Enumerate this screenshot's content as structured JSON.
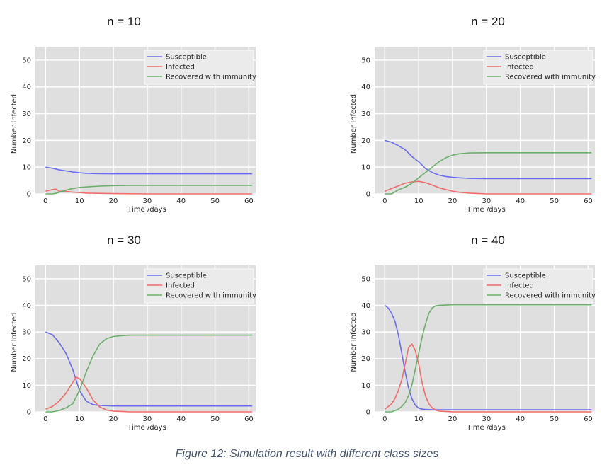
{
  "figure_caption": "Figure 12: Simulation result with different class sizes",
  "chart_data": [
    {
      "type": "line",
      "title": "n = 10",
      "xlabel": "Time /days",
      "ylabel": "Number Infected",
      "xlim": [
        -3,
        62
      ],
      "ylim": [
        0,
        55
      ],
      "xticks": [
        0,
        10,
        20,
        30,
        40,
        50,
        60
      ],
      "yticks": [
        0,
        10,
        20,
        30,
        40,
        50
      ],
      "grid": true,
      "legend_position": "top-right",
      "series": [
        {
          "name": "Susceptible",
          "color": "#6b6bf0",
          "x": [
            0,
            2,
            4,
            6,
            8,
            10,
            12,
            15,
            20,
            25,
            30,
            40,
            50,
            61
          ],
          "y": [
            10,
            9.6,
            9.0,
            8.6,
            8.2,
            7.9,
            7.7,
            7.6,
            7.5,
            7.5,
            7.5,
            7.5,
            7.5,
            7.5
          ]
        },
        {
          "name": "Infected",
          "color": "#f06b6b",
          "x": [
            0,
            1,
            2,
            3,
            4,
            5,
            6,
            8,
            10,
            12,
            15,
            20,
            30,
            61
          ],
          "y": [
            1,
            1.3,
            1.6,
            1.8,
            1.0,
            1.0,
            0.9,
            0.7,
            0.5,
            0.3,
            0.2,
            0.1,
            0,
            0
          ]
        },
        {
          "name": "Recovered with immunity",
          "color": "#6baf6b",
          "x": [
            0,
            2,
            3,
            4,
            6,
            8,
            10,
            13,
            16,
            20,
            25,
            30,
            40,
            61
          ],
          "y": [
            0,
            0,
            0.2,
            0.6,
            1.4,
            2.0,
            2.4,
            2.7,
            2.9,
            3.1,
            3.2,
            3.2,
            3.2,
            3.2
          ]
        }
      ]
    },
    {
      "type": "line",
      "title": "n  = 20",
      "xlabel": "Time /days",
      "ylabel": "Number Infected",
      "xlim": [
        -3,
        62
      ],
      "ylim": [
        0,
        55
      ],
      "xticks": [
        0,
        10,
        20,
        30,
        40,
        50,
        60
      ],
      "yticks": [
        0,
        10,
        20,
        30,
        40,
        50
      ],
      "grid": true,
      "legend_position": "top-right",
      "series": [
        {
          "name": "Susceptible",
          "color": "#6b6bf0",
          "x": [
            0,
            2,
            4,
            6,
            8,
            10,
            12,
            14,
            16,
            18,
            20,
            22,
            25,
            30,
            40,
            50,
            61
          ],
          "y": [
            20,
            19.3,
            18,
            16.5,
            14,
            12,
            9.5,
            8,
            7,
            6.5,
            6.2,
            6,
            5.8,
            5.7,
            5.7,
            5.7,
            5.7
          ]
        },
        {
          "name": "Infected",
          "color": "#f06b6b",
          "x": [
            0,
            2,
            4,
            6,
            8,
            10,
            12,
            14,
            16,
            18,
            20,
            22,
            25,
            30,
            61
          ],
          "y": [
            1,
            2,
            3,
            4,
            4.5,
            4.7,
            4.2,
            3.3,
            2.3,
            1.6,
            1.0,
            0.6,
            0.3,
            0,
            0
          ]
        },
        {
          "name": "Recovered with immunity",
          "color": "#6baf6b",
          "x": [
            0,
            2,
            4,
            6,
            8,
            10,
            12,
            14,
            16,
            18,
            20,
            22,
            25,
            30,
            40,
            50,
            61
          ],
          "y": [
            0,
            0,
            1.5,
            2.5,
            4,
            6,
            8,
            10,
            12,
            13.5,
            14.5,
            15,
            15.3,
            15.4,
            15.4,
            15.4,
            15.4
          ]
        }
      ]
    },
    {
      "type": "line",
      "title": "n = 30",
      "xlabel": "Time /days",
      "ylabel": "Number Infected",
      "xlim": [
        -3,
        62
      ],
      "ylim": [
        0,
        55
      ],
      "xticks": [
        0,
        10,
        20,
        30,
        40,
        50,
        60
      ],
      "yticks": [
        0,
        10,
        20,
        30,
        40,
        50
      ],
      "grid": true,
      "legend_position": "top-right",
      "series": [
        {
          "name": "Susceptible",
          "color": "#6b6bf0",
          "x": [
            0,
            2,
            4,
            6,
            8,
            10,
            12,
            14,
            16,
            18,
            20,
            25,
            30,
            40,
            50,
            61
          ],
          "y": [
            30,
            29,
            26,
            22,
            16,
            8,
            4,
            2.7,
            2.4,
            2.3,
            2.2,
            2.2,
            2.2,
            2.2,
            2.2,
            2.2
          ]
        },
        {
          "name": "Infected",
          "color": "#f06b6b",
          "x": [
            0,
            2,
            4,
            6,
            8,
            9,
            10,
            12,
            14,
            16,
            18,
            20,
            25,
            61
          ],
          "y": [
            1,
            2,
            4,
            7,
            11,
            13,
            12.5,
            9,
            4.5,
            1.8,
            0.7,
            0.3,
            0,
            0
          ]
        },
        {
          "name": "Recovered with immunity",
          "color": "#6baf6b",
          "x": [
            0,
            2,
            4,
            6,
            8,
            10,
            12,
            14,
            16,
            18,
            20,
            22,
            25,
            30,
            40,
            50,
            61
          ],
          "y": [
            0,
            0,
            0.5,
            1.5,
            3,
            8,
            15,
            21,
            25.5,
            27.5,
            28.3,
            28.6,
            28.8,
            28.8,
            28.8,
            28.8,
            28.8
          ]
        }
      ]
    },
    {
      "type": "line",
      "title": "n = 40",
      "xlabel": "Time /days",
      "ylabel": "Number Infected",
      "xlim": [
        -3,
        62
      ],
      "ylim": [
        0,
        55
      ],
      "xticks": [
        0,
        10,
        20,
        30,
        40,
        50,
        60
      ],
      "yticks": [
        0,
        10,
        20,
        30,
        40,
        50
      ],
      "grid": true,
      "legend_position": "top-right",
      "series": [
        {
          "name": "Susceptible",
          "color": "#6b6bf0",
          "x": [
            0,
            1,
            2,
            3,
            4,
            5,
            6,
            7,
            8,
            9,
            10,
            11,
            12,
            14,
            16,
            20,
            30,
            40,
            50,
            61
          ],
          "y": [
            40,
            39,
            37,
            34,
            29,
            22,
            15,
            9,
            5,
            2.5,
            1.4,
            1.0,
            0.9,
            0.8,
            0.8,
            0.8,
            0.8,
            0.8,
            0.8,
            0.8
          ]
        },
        {
          "name": "Infected",
          "color": "#f06b6b",
          "x": [
            0,
            1,
            2,
            3,
            4,
            5,
            6,
            7,
            8,
            9,
            10,
            11,
            12,
            13,
            14,
            15,
            16,
            20,
            61
          ],
          "y": [
            1,
            2,
            3,
            5,
            8,
            12,
            18,
            24,
            25.5,
            23,
            18,
            11,
            6,
            3,
            1.5,
            0.7,
            0.3,
            0,
            0
          ]
        },
        {
          "name": "Recovered with immunity",
          "color": "#6baf6b",
          "x": [
            0,
            2,
            4,
            5,
            6,
            7,
            8,
            9,
            10,
            11,
            12,
            13,
            14,
            15,
            16,
            18,
            20,
            30,
            40,
            50,
            61
          ],
          "y": [
            0,
            0,
            1,
            2,
            3.5,
            6,
            10,
            16,
            22,
            28,
            33,
            37,
            39,
            39.8,
            40,
            40.1,
            40.2,
            40.2,
            40.2,
            40.2,
            40.2
          ]
        }
      ]
    }
  ]
}
